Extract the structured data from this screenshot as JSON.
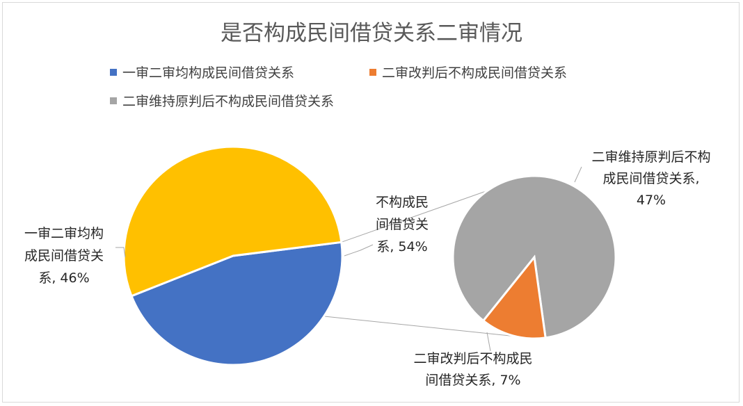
{
  "chart_data": {
    "type": "pie",
    "subtype": "pie-of-pie",
    "title": "是否构成民间借贷关系二审情况",
    "legend": {
      "position": "top",
      "entries": [
        {
          "label": "一审二审均构成民间借贷关系",
          "color": "#4472C4"
        },
        {
          "label": "二审改判后不构成民间借贷关系",
          "color": "#ED7D31"
        },
        {
          "label": "二审维持原判后不构成民间借贷关系",
          "color": "#A5A5A5"
        }
      ]
    },
    "main_pie": {
      "slices": [
        {
          "label": "一审二审均构成民间借贷关系",
          "value": 46,
          "color": "#4472C4",
          "label_lines": [
            "一审二审均构",
            "成民间借贷关",
            "系, 46%"
          ]
        },
        {
          "label": "不构成民间借贷关系",
          "value": 54,
          "color": "#FFC000",
          "label_lines": [
            "不构成民",
            "间借贷关",
            "系, 54%"
          ]
        }
      ]
    },
    "secondary_pie": {
      "slices": [
        {
          "label": "二审维持原判后不构成民间借贷关系",
          "value": 47,
          "color": "#A5A5A5",
          "label_lines": [
            "二审维持原判后不构",
            "成民间借贷关系,",
            "47%"
          ]
        },
        {
          "label": "二审改判后不构成民间借贷关系",
          "value": 7,
          "color": "#ED7D31",
          "label_lines": [
            "二审改判后不构成民",
            "间借贷关系, 7%"
          ]
        }
      ]
    }
  }
}
